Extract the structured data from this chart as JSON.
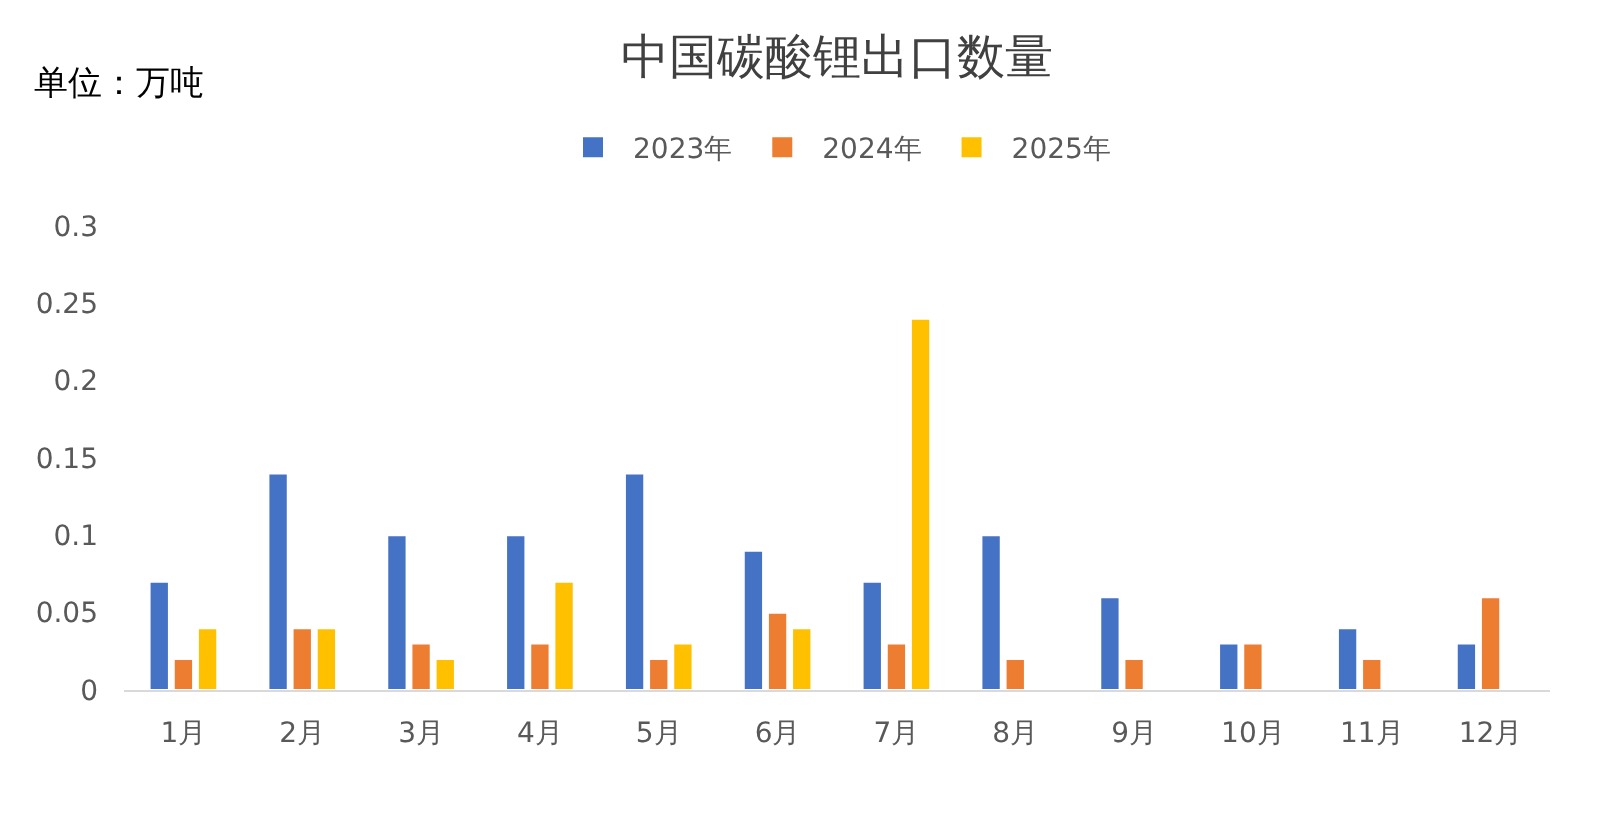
{
  "chart_data": {
    "type": "bar",
    "title": "中国碳酸锂出口数量",
    "annotations": [
      "单位：万吨"
    ],
    "categories": [
      "1月",
      "2月",
      "3月",
      "4月",
      "5月",
      "6月",
      "7月",
      "8月",
      "9月",
      "10月",
      "11月",
      "12月"
    ],
    "series": [
      {
        "name": "2023年",
        "color": "#4472c4",
        "values": [
          0.07,
          0.14,
          0.1,
          0.1,
          0.14,
          0.09,
          0.07,
          0.1,
          0.06,
          0.03,
          0.04,
          0.03
        ]
      },
      {
        "name": "2024年",
        "color": "#ed7d31",
        "values": [
          0.02,
          0.04,
          0.03,
          0.03,
          0.02,
          0.05,
          0.03,
          0.02,
          0.02,
          0.03,
          0.02,
          0.06
        ]
      },
      {
        "name": "2025年",
        "color": "#ffc000",
        "values": [
          0.04,
          0.04,
          0.02,
          0.07,
          0.03,
          0.04,
          0.24,
          null,
          null,
          null,
          null,
          null
        ]
      }
    ],
    "ylim": [
      0,
      0.3
    ],
    "yticks": [
      0,
      0.05,
      0.1,
      0.15,
      0.2,
      0.25,
      0.3
    ],
    "legend": "top"
  }
}
